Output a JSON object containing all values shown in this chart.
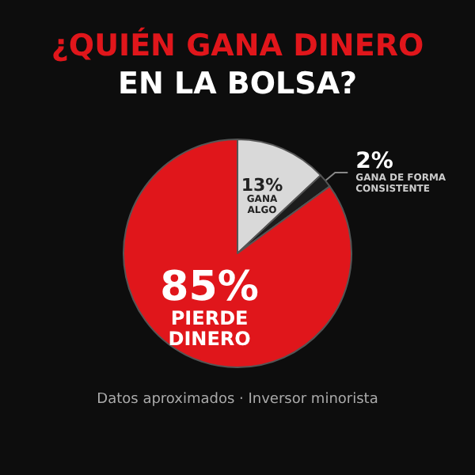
{
  "chart_data": {
    "type": "pie",
    "title": "¿QUIÉN GANA DINERO\nEN LA BOLSA?",
    "categories": [
      "GANA ALGO",
      "GANA DE FORMA CONSISTENTE",
      "PIERDE DINERO"
    ],
    "values": [
      13,
      2,
      85
    ],
    "value_labels": [
      "13%",
      "2%",
      "85%"
    ],
    "colors": [
      "#d9d9d9",
      "#1c1c1c",
      "#e0161b"
    ],
    "annotations": [
      "Datos aproximados · Inversor minorista"
    ],
    "legend": false
  }
}
